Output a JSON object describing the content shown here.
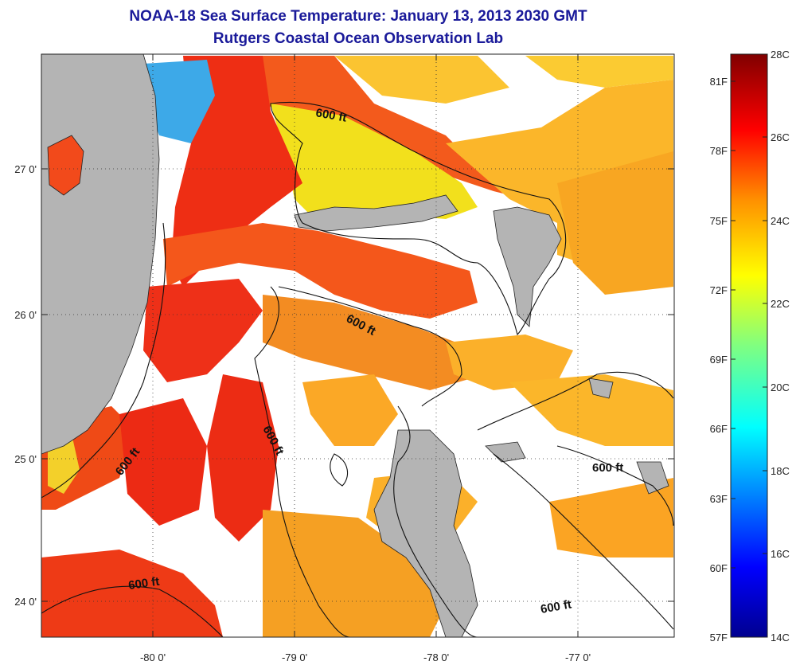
{
  "title": "NOAA-18 Sea Surface Temperature:  January 13, 2013 2030 GMT",
  "subtitle": "Rutgers Coastal Ocean Observation Lab",
  "map": {
    "lon_labels": [
      "-80 0'",
      "-79 0'",
      "-78 0'",
      "-77 0'"
    ],
    "lat_labels": [
      "27 0'",
      "26 0'",
      "25 0'",
      "24 0'"
    ],
    "contour_label": "600 ft",
    "land_color": "#b4b4b4"
  },
  "colorbar": {
    "celsius_labels": [
      "28C",
      "26C",
      "24C",
      "22C",
      "20C",
      "18C",
      "16C",
      "14C"
    ],
    "fahrenheit_labels": [
      "81F",
      "78F",
      "75F",
      "72F",
      "69F",
      "66F",
      "63F",
      "60F",
      "57F"
    ],
    "range_c": [
      14,
      28
    ]
  }
}
